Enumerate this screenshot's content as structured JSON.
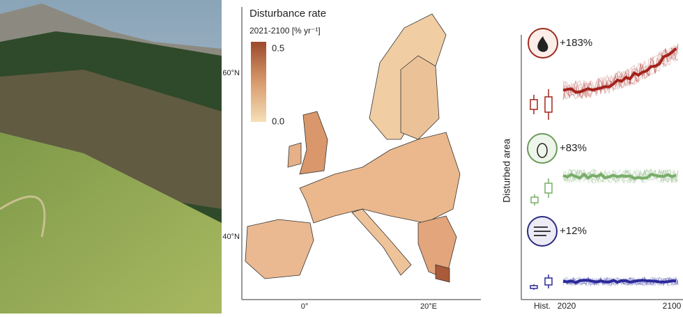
{
  "map": {
    "legend_title": "Disturbance rate",
    "legend_subtitle": "2021-2100 [% yr⁻¹]",
    "legend_max": "0.5",
    "legend_min": "0.0",
    "lat_labels": [
      "60°N",
      "40°N"
    ],
    "lon_labels": [
      "0°",
      "20°E"
    ]
  },
  "timeseries": {
    "y_label": "Disturbed area",
    "changes": [
      "+183%",
      "+83%",
      "+12%"
    ],
    "x_labels": [
      "Hist.",
      "2020",
      "2100"
    ]
  }
}
